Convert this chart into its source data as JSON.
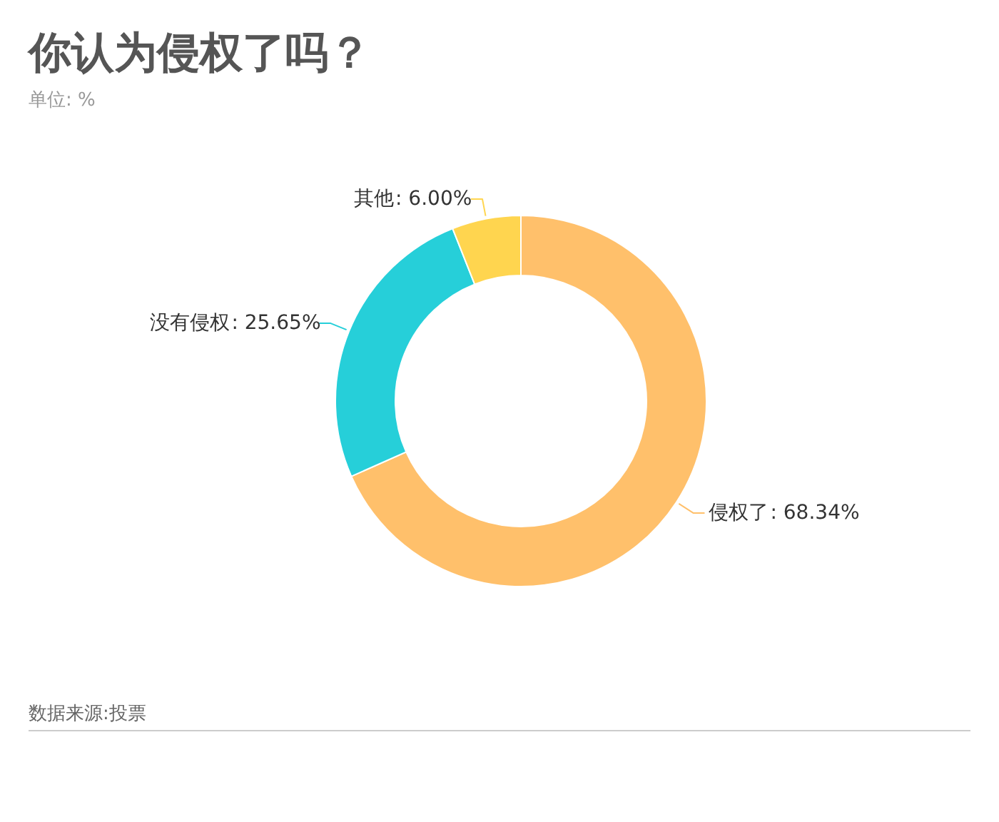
{
  "chart_data": {
    "type": "donut",
    "title": "你认为侵权了吗？",
    "subtitle": "单位: %",
    "categories": [
      "侵权了",
      "没有侵权",
      "其他"
    ],
    "values": [
      68.34,
      25.65,
      6.0
    ],
    "colors": [
      "#ffc06b",
      "#26cfd9",
      "#ffd54f"
    ],
    "value_labels": [
      ": 68.34%",
      ": 25.65%",
      ": 6.00%"
    ],
    "annotations": [
      "数据来源:投票"
    ]
  }
}
